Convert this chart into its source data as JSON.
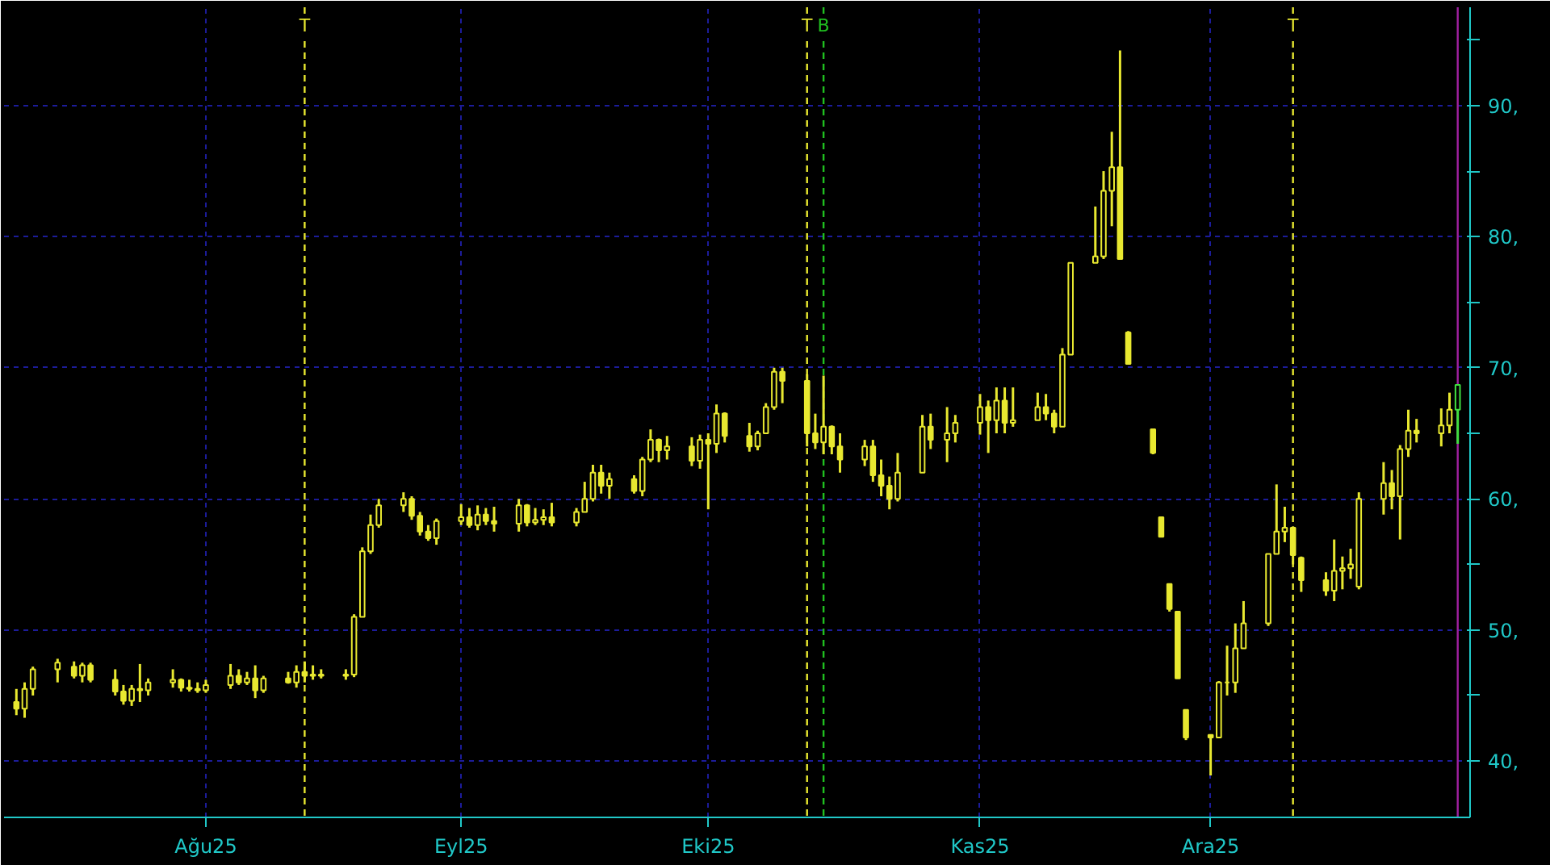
{
  "chart_data": {
    "type": "candlestick",
    "x": [
      "2025-07-09",
      "2025-07-10",
      "2025-07-11",
      "2025-07-14",
      "2025-07-16",
      "2025-07-17",
      "2025-07-18",
      "2025-07-21",
      "2025-07-22",
      "2025-07-23",
      "2025-07-24",
      "2025-07-25",
      "2025-07-28",
      "2025-07-29",
      "2025-07-30",
      "2025-07-31",
      "2025-08-01",
      "2025-08-04",
      "2025-08-05",
      "2025-08-06",
      "2025-08-07",
      "2025-08-08",
      "2025-08-11",
      "2025-08-12",
      "2025-08-13",
      "2025-08-14",
      "2025-08-15",
      "2025-08-18",
      "2025-08-19",
      "2025-08-20",
      "2025-08-21",
      "2025-08-22",
      "2025-08-25",
      "2025-08-26",
      "2025-08-27",
      "2025-08-28",
      "2025-08-29",
      "2025-09-01",
      "2025-09-02",
      "2025-09-03",
      "2025-09-04",
      "2025-09-05",
      "2025-09-08",
      "2025-09-09",
      "2025-09-10",
      "2025-09-11",
      "2025-09-12",
      "2025-09-15",
      "2025-09-16",
      "2025-09-17",
      "2025-09-18",
      "2025-09-19",
      "2025-09-22",
      "2025-09-23",
      "2025-09-24",
      "2025-09-25",
      "2025-09-26",
      "2025-09-29",
      "2025-09-30",
      "2025-10-01",
      "2025-10-02",
      "2025-10-03",
      "2025-10-06",
      "2025-10-07",
      "2025-10-08",
      "2025-10-09",
      "2025-10-10",
      "2025-10-13",
      "2025-10-14",
      "2025-10-15",
      "2025-10-16",
      "2025-10-17",
      "2025-10-20",
      "2025-10-21",
      "2025-10-22",
      "2025-10-23",
      "2025-10-24",
      "2025-10-27",
      "2025-10-28",
      "2025-10-30",
      "2025-10-31",
      "2025-11-03",
      "2025-11-04",
      "2025-11-05",
      "2025-11-06",
      "2025-11-07",
      "2025-11-10",
      "2025-11-11",
      "2025-11-12",
      "2025-11-13",
      "2025-11-14",
      "2025-11-17",
      "2025-11-18",
      "2025-11-19",
      "2025-11-20",
      "2025-11-21",
      "2025-11-24",
      "2025-11-25",
      "2025-11-26",
      "2025-11-27",
      "2025-11-28",
      "2025-12-01",
      "2025-12-02",
      "2025-12-03",
      "2025-12-04",
      "2025-12-05",
      "2025-12-08",
      "2025-12-09",
      "2025-12-10",
      "2025-12-11",
      "2025-12-12",
      "2025-12-15",
      "2025-12-16",
      "2025-12-17",
      "2025-12-18",
      "2025-12-19",
      "2025-12-22",
      "2025-12-23",
      "2025-12-24",
      "2025-12-25",
      "2025-12-26",
      "2025-12-29",
      "2025-12-30"
    ],
    "series": [
      {
        "color": "#e8e830",
        "ohlc": [
          [
            44.5,
            45.5,
            43.5,
            44
          ],
          [
            44,
            46,
            43.3,
            45.5
          ],
          [
            45.5,
            47.2,
            45,
            47
          ],
          [
            47,
            47.8,
            46,
            47.5
          ],
          [
            47.2,
            47.6,
            46.3,
            46.5
          ],
          [
            46.5,
            47.5,
            46,
            47.3
          ],
          [
            47.3,
            47.5,
            46,
            46.2
          ],
          [
            46.2,
            47,
            45,
            45.3
          ],
          [
            45.3,
            45.8,
            44.3,
            44.6
          ],
          [
            44.6,
            45.8,
            44.2,
            45.5
          ],
          [
            45.5,
            47.4,
            44.5,
            45.4
          ],
          [
            45.4,
            46.3,
            45,
            46
          ],
          [
            46,
            47,
            45.6,
            46.2
          ],
          [
            46.2,
            46.3,
            45.3,
            45.6
          ],
          [
            45.6,
            46.2,
            45.3,
            45.5
          ],
          [
            45.5,
            46,
            45.2,
            45.4
          ],
          [
            45.4,
            46.2,
            45.2,
            45.8
          ],
          [
            45.8,
            47.4,
            45.5,
            46.5
          ],
          [
            46.5,
            47,
            45.8,
            46
          ],
          [
            46,
            46.8,
            45.8,
            46.3
          ],
          [
            46.3,
            47.3,
            44.8,
            45.4
          ],
          [
            45.4,
            46.5,
            45.2,
            46.3
          ],
          [
            46.3,
            46.8,
            45.9,
            46
          ],
          [
            46,
            47.3,
            45.6,
            46.8
          ],
          [
            46.8,
            47.6,
            46,
            46.5
          ],
          [
            46.5,
            47.3,
            46.2,
            46.6
          ],
          [
            46.6,
            47,
            46.3,
            46.5
          ],
          [
            46.5,
            47,
            46.2,
            46.6
          ],
          [
            46.6,
            51.2,
            46.4,
            51
          ],
          [
            51,
            56.3,
            51,
            56
          ],
          [
            56,
            58.8,
            55.8,
            58
          ],
          [
            58,
            60,
            57.8,
            59.5
          ],
          [
            59.5,
            60.5,
            59,
            60
          ],
          [
            60,
            60.2,
            58.4,
            58.7
          ],
          [
            58.7,
            59,
            57.2,
            57.5
          ],
          [
            57.5,
            58,
            56.8,
            57
          ],
          [
            57,
            58.5,
            56.5,
            58.3
          ],
          [
            58.3,
            59.6,
            58,
            58.6
          ],
          [
            58.6,
            59.3,
            57.8,
            58
          ],
          [
            58,
            59.5,
            57.6,
            58.8
          ],
          [
            58.8,
            59.3,
            58,
            58.3
          ],
          [
            58.3,
            59.4,
            57.5,
            58.1
          ],
          [
            58.1,
            60,
            57.5,
            59.5
          ],
          [
            59.5,
            59.6,
            57.9,
            58.2
          ],
          [
            58.2,
            59.3,
            58,
            58.4
          ],
          [
            58.4,
            59.2,
            58,
            58.6
          ],
          [
            58.6,
            59.7,
            57.9,
            58.2
          ],
          [
            58.2,
            59.3,
            57.9,
            59
          ],
          [
            59,
            61.3,
            59,
            60
          ],
          [
            60,
            62.6,
            59.8,
            62
          ],
          [
            62,
            62.6,
            60.4,
            61
          ],
          [
            61,
            62,
            60,
            61.5
          ],
          [
            61.5,
            61.8,
            60.4,
            60.6
          ],
          [
            60.6,
            63.2,
            60.2,
            63
          ],
          [
            63,
            65.3,
            62.8,
            64.5
          ],
          [
            64.5,
            64.6,
            62.8,
            63.7
          ],
          [
            63.7,
            64.8,
            63,
            64
          ],
          [
            64,
            64.7,
            62.5,
            62.9
          ],
          [
            62.9,
            64.9,
            62.3,
            64.5
          ],
          [
            64.5,
            65,
            59.2,
            64.2
          ],
          [
            64.2,
            67.2,
            63.5,
            66.5
          ],
          [
            66.5,
            66.6,
            64.3,
            64.8
          ],
          [
            64.8,
            65.8,
            63.6,
            64
          ],
          [
            64,
            65.2,
            63.7,
            65
          ],
          [
            65,
            67.3,
            65,
            67
          ],
          [
            67,
            70,
            66.8,
            69.7
          ],
          [
            69.7,
            70,
            67.3,
            69
          ],
          [
            69,
            69.5,
            64,
            65
          ],
          [
            65,
            66.5,
            63.8,
            64.3
          ],
          [
            64.3,
            69.4,
            63.4,
            65.5
          ],
          [
            65.5,
            65.6,
            63.4,
            64
          ],
          [
            64,
            65,
            62,
            63
          ],
          [
            63,
            64.5,
            62.5,
            64
          ],
          [
            64,
            64.5,
            61.3,
            61.8
          ],
          [
            61.8,
            63,
            60.2,
            61
          ],
          [
            61,
            61.7,
            59.2,
            60
          ],
          [
            60,
            63.5,
            59.8,
            62
          ],
          [
            62,
            66.4,
            62,
            65.5
          ],
          [
            65.5,
            66.5,
            63.8,
            64.5
          ],
          [
            64.5,
            67,
            62.8,
            65
          ],
          [
            65,
            66.4,
            64.3,
            65.8
          ],
          [
            65.8,
            68,
            64.9,
            67
          ],
          [
            67,
            67.5,
            63.5,
            66
          ],
          [
            66,
            68.5,
            65,
            67.5
          ],
          [
            67.5,
            68.5,
            65,
            65.8
          ],
          [
            65.8,
            68.5,
            65.5,
            66
          ],
          [
            66,
            68.1,
            66,
            67
          ],
          [
            67,
            68,
            66,
            66.5
          ],
          [
            66.5,
            66.8,
            65,
            65.5
          ],
          [
            65.5,
            71.5,
            65.5,
            71
          ],
          [
            71,
            78,
            71,
            78
          ],
          [
            78,
            82.3,
            78,
            78.5
          ],
          [
            78.5,
            85,
            78.3,
            83.5
          ],
          [
            83.5,
            88,
            80.8,
            85.3
          ],
          [
            85.3,
            94.2,
            78.3,
            78.3
          ],
          [
            72.7,
            72.8,
            70.3,
            70.3
          ],
          [
            65.3,
            65.3,
            63.4,
            63.5
          ],
          [
            58.6,
            58.6,
            57.1,
            57.1
          ],
          [
            53.5,
            53.5,
            51.4,
            51.6
          ],
          [
            51.4,
            51.4,
            46.3,
            46.3
          ],
          [
            43.9,
            43.9,
            41.6,
            41.8
          ],
          [
            42,
            42,
            38.9,
            41.8
          ],
          [
            41.8,
            46.1,
            41.8,
            46
          ],
          [
            46,
            48.8,
            45,
            46
          ],
          [
            46,
            50.5,
            45.2,
            48.6
          ],
          [
            48.6,
            52.2,
            48.6,
            50.5
          ],
          [
            50.5,
            55.8,
            50.3,
            55.8
          ],
          [
            55.8,
            61.1,
            55.8,
            57.5
          ],
          [
            57.5,
            59.4,
            56.7,
            57.8
          ],
          [
            57.8,
            57.9,
            55,
            55.7
          ],
          [
            55.5,
            55.6,
            52.9,
            53.8
          ],
          [
            53.8,
            54.4,
            52.6,
            53
          ],
          [
            53,
            56.9,
            52.2,
            54.5
          ],
          [
            54.5,
            55.6,
            53.1,
            54.7
          ],
          [
            54.7,
            56.2,
            53.9,
            55
          ],
          [
            53.3,
            60.5,
            53.1,
            60
          ],
          [
            60,
            62.8,
            58.8,
            61.2
          ],
          [
            61.2,
            62.2,
            59.2,
            60.2
          ],
          [
            60.2,
            64.1,
            56.9,
            63.8
          ],
          [
            63.8,
            66.8,
            63.2,
            65.2
          ],
          [
            65.2,
            66.1,
            64.3,
            65
          ],
          [
            65,
            66.9,
            64,
            65.6
          ],
          [
            65.6,
            68.1,
            65,
            66.8
          ]
        ]
      },
      {
        "color": "#40e040",
        "x": [
          "2025-12-31"
        ],
        "ohlc": [
          [
            66.8,
            68.7,
            64.2,
            68.7
          ]
        ]
      }
    ],
    "xlim": [
      "2025-07-08",
      "2026-01-02"
    ],
    "xticks": [
      {
        "value": "2025-08-01",
        "label": "Ağu25"
      },
      {
        "value": "2025-09-01",
        "label": "Eyl25"
      },
      {
        "value": "2025-10-01",
        "label": "Eki25"
      },
      {
        "value": "2025-11-03",
        "label": "Kas25"
      },
      {
        "value": "2025-12-01",
        "label": "Ara25"
      }
    ],
    "ylim": [
      35.7,
      97.5
    ],
    "yticks": [
      {
        "value": 40,
        "label": "40,"
      },
      {
        "value": 45,
        "label": null
      },
      {
        "value": 50,
        "label": "50,"
      },
      {
        "value": 55,
        "label": null
      },
      {
        "value": 60,
        "label": "60,"
      },
      {
        "value": 65,
        "label": null
      },
      {
        "value": 70,
        "label": "70,"
      },
      {
        "value": 75,
        "label": null
      },
      {
        "value": 80,
        "label": "80,"
      },
      {
        "value": 85,
        "label": null
      },
      {
        "value": 90,
        "label": "90,"
      },
      {
        "value": 95,
        "label": null
      }
    ],
    "grid": true,
    "ref_lines": [
      {
        "axis": "x",
        "value": "2025-08-13",
        "label": "T",
        "color": "#e8e830",
        "line_style": "dashed"
      },
      {
        "axis": "x",
        "value": "2025-10-13",
        "label": "T",
        "color": "#e8e830",
        "line_style": "dashed"
      },
      {
        "axis": "x",
        "value": "2025-10-15",
        "label": "B",
        "color": "#20c020",
        "line_style": "dashed"
      },
      {
        "axis": "x",
        "value": "2025-12-11",
        "label": "T",
        "color": "#e8e830",
        "line_style": "dashed"
      },
      {
        "axis": "x",
        "value": "2025-12-31",
        "color": "#a020a0",
        "line_style": "solid"
      }
    ]
  }
}
